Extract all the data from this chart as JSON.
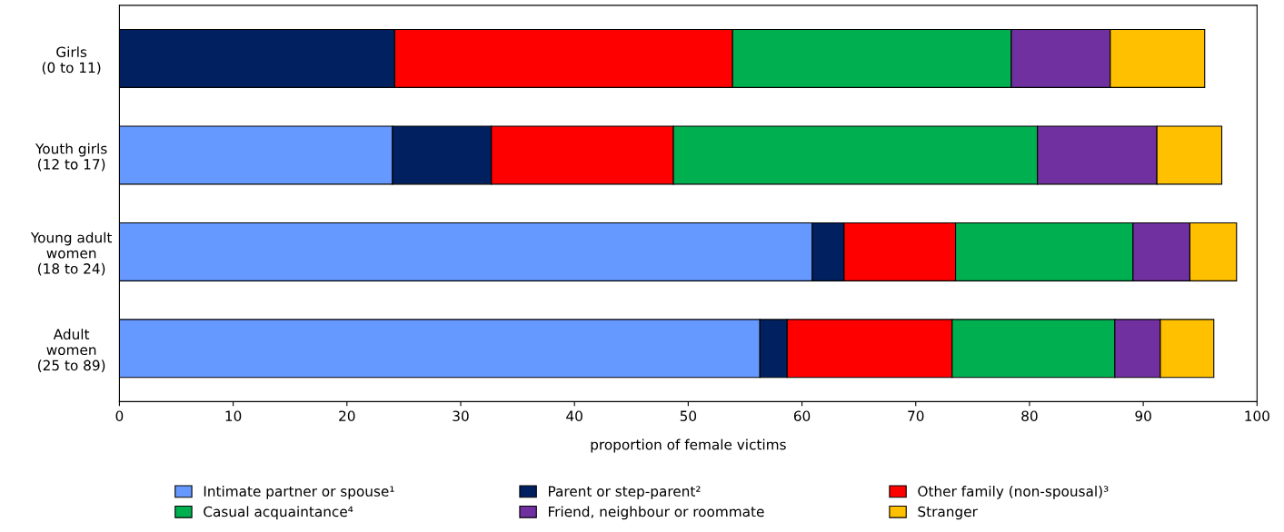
{
  "chart_data": {
    "type": "bar",
    "orientation": "horizontal",
    "stacked": true,
    "categories": [
      "Girls\n(0 to 11)",
      "Youth girls\n(12 to 17)",
      "Young adult\nwomen\n(18 to 24)",
      "Adult\nwomen\n(25 to 89)"
    ],
    "series": [
      {
        "name": "Intimate partner or spouse¹",
        "color": "#6699ff",
        "values": [
          0,
          24.0,
          60.9,
          56.3
        ]
      },
      {
        "name": "Parent or step-parent²",
        "color": "#002060",
        "values": [
          24.2,
          8.7,
          2.8,
          2.4
        ]
      },
      {
        "name": "Other family (non-spousal)³",
        "color": "#ff0000",
        "values": [
          29.7,
          16.0,
          9.8,
          14.5
        ]
      },
      {
        "name": "Casual acquaintance⁴",
        "color": "#00b050",
        "values": [
          24.5,
          32.0,
          15.6,
          14.3
        ]
      },
      {
        "name": "Friend, neighbour or roommate",
        "color": "#7030a0",
        "values": [
          8.7,
          10.5,
          5.0,
          4.0
        ]
      },
      {
        "name": "Stranger",
        "color": "#ffc000",
        "values": [
          8.3,
          5.7,
          4.1,
          4.7
        ]
      }
    ],
    "xlabel": "proportion of female victims",
    "xlim": [
      0,
      100
    ],
    "xticks": [
      0,
      10,
      20,
      30,
      40,
      50,
      60,
      70,
      80,
      90,
      100
    ],
    "grid": false,
    "legend": "bottom"
  }
}
